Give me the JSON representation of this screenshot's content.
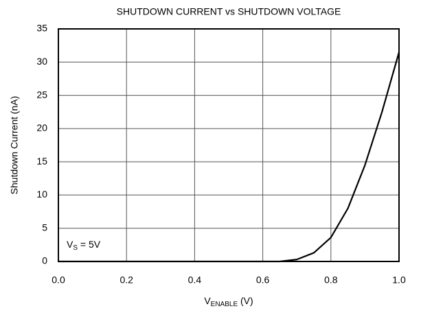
{
  "chart_data": {
    "type": "line",
    "title": "SHUTDOWN CURRENT vs SHUTDOWN VOLTAGE",
    "y_label": "Shutdown Current (nA)",
    "x_label": {
      "main": "V",
      "sub": "ENABLE",
      "rest": " (V)"
    },
    "annotation": {
      "main": "V",
      "sub": "S",
      "rest": " = 5V"
    },
    "x": [
      0,
      0.2,
      0.4,
      0.6,
      0.65,
      0.7,
      0.75,
      0.8,
      0.85,
      0.9,
      0.95,
      1.0
    ],
    "series": [
      {
        "color": "#000000",
        "values": [
          0,
          0,
          0,
          0,
          0,
          0.3,
          1.3,
          3.6,
          8,
          14.5,
          22.5,
          31.5
        ]
      }
    ],
    "xlim": [
      0,
      1
    ],
    "xticks": [
      {
        "value": 0,
        "label": "0.0"
      },
      0.2,
      0.4,
      0.6,
      0.8,
      {
        "value": 1,
        "label": "1.0"
      }
    ],
    "ylim": [
      0,
      35
    ],
    "yticks": [
      0,
      5,
      10,
      15,
      20,
      25,
      30,
      35
    ],
    "grid": true
  }
}
